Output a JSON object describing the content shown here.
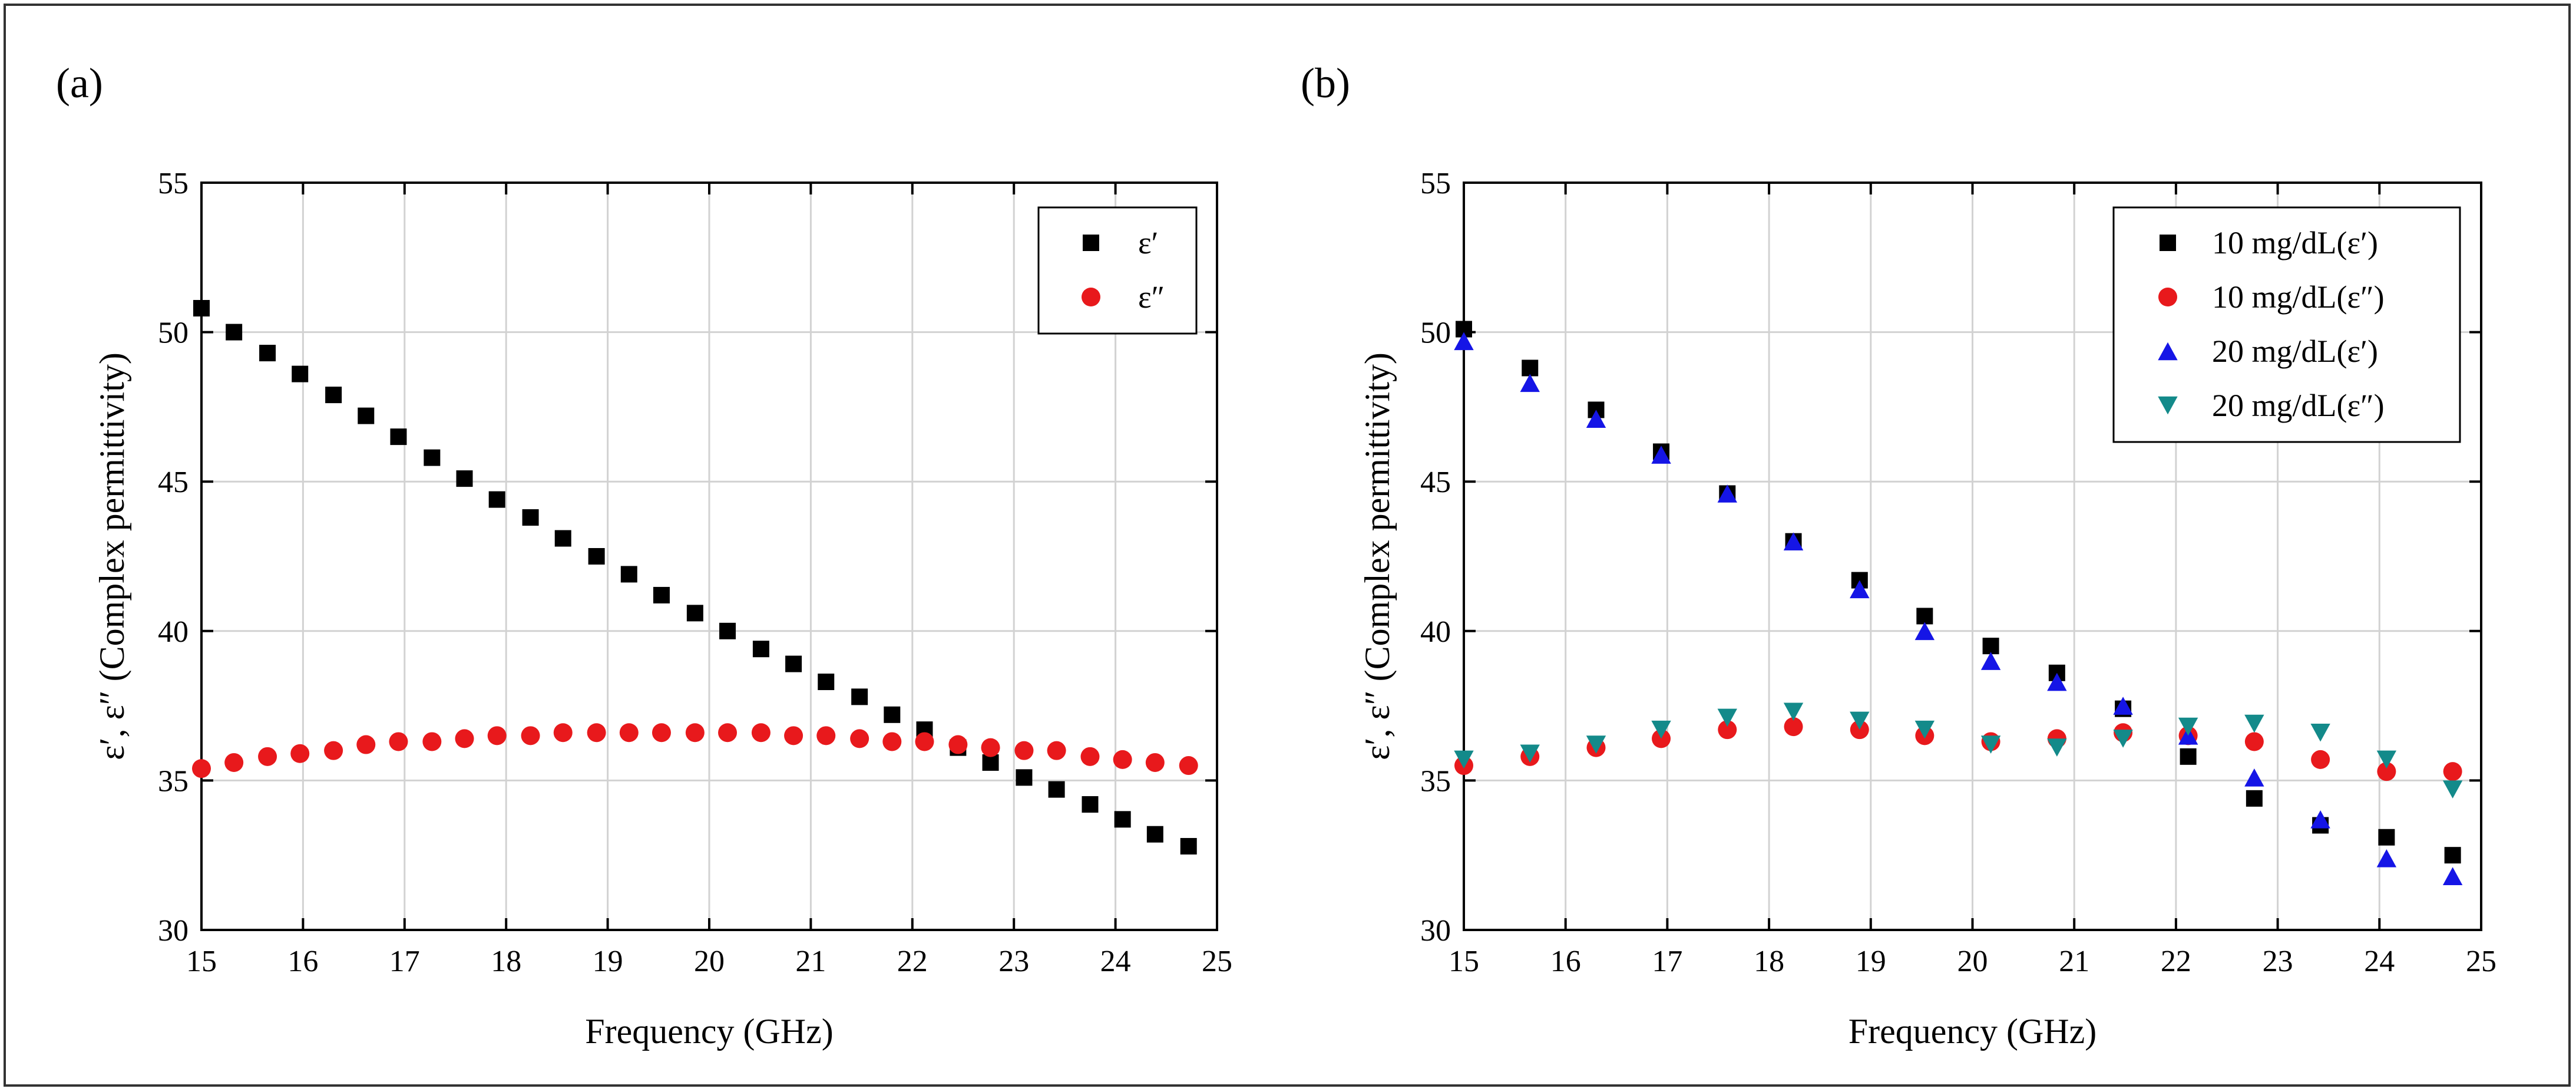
{
  "chart_data": [
    {
      "type": "scatter",
      "panel_label": "(a)",
      "xlabel": "Frequency (GHz)",
      "ylabel": "ε′, ε″ (Complex permittivity)",
      "xlim": [
        15,
        25
      ],
      "ylim": [
        30,
        55
      ],
      "xticks": [
        "15",
        "16",
        "17",
        "18",
        "19",
        "20",
        "21",
        "22",
        "23",
        "24",
        "25"
      ],
      "yticks": [
        "30",
        "35",
        "40",
        "45",
        "50",
        "55"
      ],
      "grid": true,
      "legend_position": "top-right",
      "series": [
        {
          "name": "ε′",
          "marker": "square",
          "color": "#000000",
          "x": [
            15.0,
            15.32,
            15.65,
            15.97,
            16.3,
            16.62,
            16.94,
            17.27,
            17.59,
            17.91,
            18.24,
            18.56,
            18.89,
            19.21,
            19.53,
            19.86,
            20.18,
            20.51,
            20.83,
            21.15,
            21.48,
            21.8,
            22.12,
            22.45,
            22.77,
            23.1,
            23.42,
            23.75,
            24.07,
            24.39,
            24.72
          ],
          "y": [
            50.8,
            50.0,
            49.3,
            48.6,
            47.9,
            47.2,
            46.5,
            45.8,
            45.1,
            44.4,
            43.8,
            43.1,
            42.5,
            41.9,
            41.2,
            40.6,
            40.0,
            39.4,
            38.9,
            38.3,
            37.8,
            37.2,
            36.7,
            36.1,
            35.6,
            35.1,
            34.7,
            34.2,
            33.7,
            33.2,
            32.8
          ]
        },
        {
          "name": "ε″",
          "marker": "circle",
          "color": "#e8191c",
          "x": [
            15.0,
            15.32,
            15.65,
            15.97,
            16.3,
            16.62,
            16.94,
            17.27,
            17.59,
            17.91,
            18.24,
            18.56,
            18.89,
            19.21,
            19.53,
            19.86,
            20.18,
            20.51,
            20.83,
            21.15,
            21.48,
            21.8,
            22.12,
            22.45,
            22.77,
            23.1,
            23.42,
            23.75,
            24.07,
            24.39,
            24.72
          ],
          "y": [
            35.4,
            35.6,
            35.8,
            35.9,
            36.0,
            36.2,
            36.3,
            36.3,
            36.4,
            36.5,
            36.5,
            36.6,
            36.6,
            36.6,
            36.6,
            36.6,
            36.6,
            36.6,
            36.5,
            36.5,
            36.4,
            36.3,
            36.3,
            36.2,
            36.1,
            36.0,
            36.0,
            35.8,
            35.7,
            35.6,
            35.5
          ]
        }
      ]
    },
    {
      "type": "scatter",
      "panel_label": "(b)",
      "xlabel": "Frequency (GHz)",
      "ylabel": "ε′, ε″ (Complex permittivity)",
      "xlim": [
        15,
        25
      ],
      "ylim": [
        30,
        55
      ],
      "xticks": [
        "15",
        "16",
        "17",
        "18",
        "19",
        "20",
        "21",
        "22",
        "23",
        "24",
        "25"
      ],
      "yticks": [
        "30",
        "35",
        "40",
        "45",
        "50",
        "55"
      ],
      "grid": true,
      "legend_position": "top-right",
      "series": [
        {
          "name": "10 mg/dL(ε′)",
          "marker": "square",
          "color": "#000000",
          "x": [
            15.0,
            15.65,
            16.3,
            16.94,
            17.59,
            18.24,
            18.89,
            19.53,
            20.18,
            20.83,
            21.48,
            22.12,
            22.77,
            23.42,
            24.07,
            24.72
          ],
          "y": [
            50.1,
            48.8,
            47.4,
            46.0,
            44.6,
            43.0,
            41.7,
            40.5,
            39.5,
            38.6,
            37.4,
            35.8,
            34.4,
            33.5,
            33.1,
            32.5
          ]
        },
        {
          "name": "10 mg/dL(ε″)",
          "marker": "circle",
          "color": "#e8191c",
          "x": [
            15.0,
            15.65,
            16.3,
            16.94,
            17.59,
            18.24,
            18.89,
            19.53,
            20.18,
            20.83,
            21.48,
            22.12,
            22.77,
            23.42,
            24.07,
            24.72
          ],
          "y": [
            35.5,
            35.8,
            36.1,
            36.4,
            36.7,
            36.8,
            36.7,
            36.5,
            36.3,
            36.4,
            36.6,
            36.5,
            36.3,
            35.7,
            35.3,
            35.3
          ]
        },
        {
          "name": "20 mg/dL(ε′)",
          "marker": "triangle-up",
          "color": "#1515e6",
          "x": [
            15.0,
            15.65,
            16.3,
            16.94,
            17.59,
            18.24,
            18.89,
            19.53,
            20.18,
            20.83,
            21.48,
            22.12,
            22.77,
            23.42,
            24.07,
            24.72
          ],
          "y": [
            49.7,
            48.3,
            47.1,
            45.9,
            44.6,
            43.0,
            41.4,
            40.0,
            39.0,
            38.3,
            37.5,
            36.5,
            35.1,
            33.7,
            32.4,
            31.8
          ]
        },
        {
          "name": "20 mg/dL(ε″)",
          "marker": "triangle-down",
          "color": "#138a8a",
          "x": [
            15.0,
            15.65,
            16.3,
            16.94,
            17.59,
            18.24,
            18.89,
            19.53,
            20.18,
            20.83,
            21.48,
            22.12,
            22.77,
            23.42,
            24.07,
            24.72
          ],
          "y": [
            35.7,
            35.9,
            36.2,
            36.7,
            37.1,
            37.3,
            37.0,
            36.7,
            36.2,
            36.1,
            36.4,
            36.8,
            36.9,
            36.6,
            35.7,
            34.7
          ]
        }
      ]
    }
  ]
}
